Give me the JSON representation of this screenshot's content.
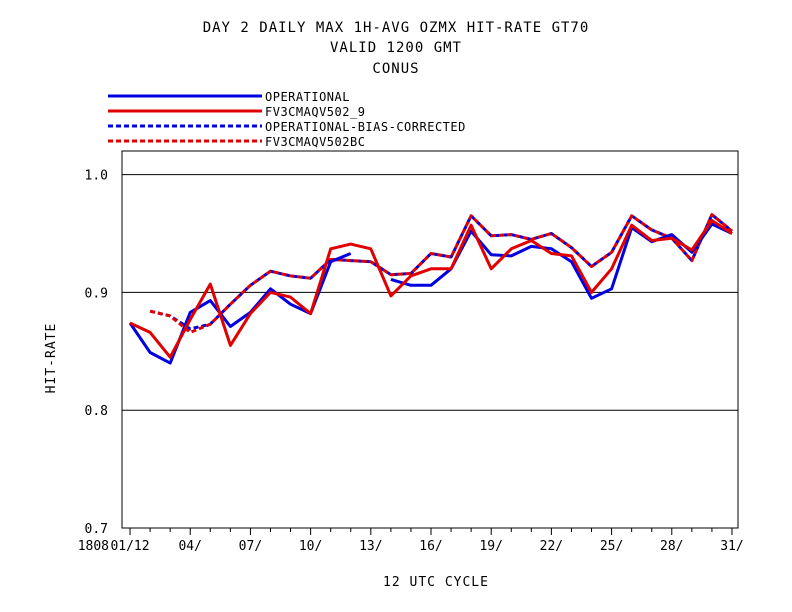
{
  "title_lines": [
    "DAY 2 DAILY MAX   1H-AVG OZMX HIT-RATE GT70",
    "VALID 1200 GMT",
    "CONUS"
  ],
  "chart_data": {
    "type": "line",
    "xlabel": "12 UTC CYCLE",
    "ylabel": "HIT-RATE",
    "ylim": [
      0.7,
      1.02
    ],
    "yticks": [
      "0.7",
      "0.8",
      "0.9",
      "1.0"
    ],
    "ytick_values": [
      0.7,
      0.8,
      0.9,
      1.0
    ],
    "xlim": [
      0.6,
      31.3
    ],
    "xtick_prefix": "1808",
    "xtick_labels": [
      "01/12",
      "04/",
      "07/",
      "10/",
      "13/",
      "16/",
      "19/",
      "22/",
      "25/",
      "28/",
      "31/"
    ],
    "xtick_days": [
      1,
      4,
      7,
      10,
      13,
      16,
      19,
      22,
      25,
      28,
      31
    ],
    "grid": "horizontal at y-ticks",
    "legend_placement": "top-left above plot",
    "x": [
      1,
      2,
      3,
      4,
      5,
      6,
      7,
      8,
      9,
      10,
      11,
      12,
      13,
      14,
      15,
      16,
      17,
      18,
      19,
      20,
      21,
      22,
      23,
      24,
      25,
      26,
      27,
      28,
      29,
      30,
      31
    ],
    "series": [
      {
        "name": "OPERATIONAL",
        "color": "#0000e0",
        "dash": "solid",
        "values": [
          0.874,
          0.849,
          0.84,
          0.883,
          0.893,
          0.871,
          0.883,
          0.903,
          0.89,
          0.882,
          0.926,
          0.933,
          null,
          0.911,
          0.906,
          0.906,
          0.92,
          0.952,
          0.932,
          0.931,
          0.939,
          0.937,
          0.926,
          0.895,
          0.903,
          0.955,
          0.943,
          0.949,
          0.934,
          0.958,
          0.95
        ]
      },
      {
        "name": "FV3CMAQV502_9",
        "color": "#e00000",
        "dash": "solid",
        "values": [
          0.874,
          0.866,
          0.845,
          0.877,
          0.907,
          0.855,
          0.882,
          0.9,
          0.896,
          0.882,
          0.937,
          0.941,
          0.937,
          0.897,
          0.914,
          0.92,
          0.92,
          0.957,
          0.92,
          0.937,
          0.944,
          0.933,
          0.931,
          0.9,
          0.92,
          0.957,
          0.944,
          0.946,
          0.936,
          0.961,
          0.95
        ]
      },
      {
        "name": "OPERATIONAL-BIAS-CORRECTED",
        "color": "#0000e0",
        "dash": "dashed",
        "values": [
          null,
          0.884,
          0.88,
          0.869,
          0.873,
          0.89,
          0.906,
          0.918,
          0.914,
          0.912,
          0.928,
          0.927,
          0.926,
          0.915,
          0.916,
          0.933,
          0.93,
          0.965,
          0.948,
          0.949,
          0.945,
          0.95,
          0.938,
          0.922,
          0.934,
          0.965,
          0.953,
          0.946,
          0.927,
          0.966,
          0.952
        ]
      },
      {
        "name": "FV3CMAQV502BC",
        "color": "#e00000",
        "dash": "dashed",
        "values": [
          null,
          0.884,
          0.88,
          0.866,
          0.873,
          0.89,
          0.906,
          0.918,
          0.914,
          0.912,
          0.928,
          0.927,
          0.926,
          0.915,
          0.916,
          0.933,
          0.93,
          0.965,
          0.948,
          0.949,
          0.945,
          0.95,
          0.938,
          0.922,
          0.934,
          0.965,
          0.953,
          0.946,
          0.927,
          0.966,
          0.952
        ]
      }
    ]
  }
}
